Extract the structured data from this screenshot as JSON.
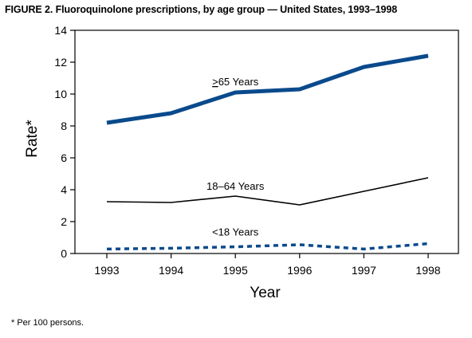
{
  "figure": {
    "title": "FIGURE 2. Fluoroquinolone prescriptions, by age group — United States, 1993–1998",
    "footnote": "* Per 100 persons."
  },
  "chart_data": {
    "type": "line",
    "title": "FIGURE 2. Fluoroquinolone prescriptions, by age group — United States, 1993–1998",
    "xlabel": "Year",
    "ylabel": "Rate*",
    "x": [
      1993,
      1994,
      1995,
      1996,
      1997,
      1998
    ],
    "x_tick_labels": [
      "1993",
      "1994",
      "1995",
      "1996",
      "1997",
      "1998"
    ],
    "ylim": [
      0,
      14
    ],
    "y_ticks": [
      0,
      2,
      4,
      6,
      8,
      10,
      12,
      14
    ],
    "y_tick_labels": [
      "0",
      "2",
      "4",
      "6",
      "8",
      "10",
      "12",
      "14"
    ],
    "grid": false,
    "legend": "inline labels",
    "series": [
      {
        "name": ">65 Years",
        "label_prefix": ">",
        "label_rest": "65 Years",
        "values": [
          8.2,
          8.8,
          10.1,
          10.3,
          11.7,
          12.4
        ],
        "color": "#0a4a8c",
        "style": "solid-thick"
      },
      {
        "name": "18–64 Years",
        "values": [
          3.25,
          3.2,
          3.6,
          3.05,
          3.9,
          4.75
        ],
        "color": "#000000",
        "style": "solid-thin"
      },
      {
        "name": "<18 Years",
        "values": [
          0.28,
          0.33,
          0.42,
          0.55,
          0.28,
          0.62
        ],
        "color": "#0a4a8c",
        "style": "dashed"
      }
    ]
  }
}
